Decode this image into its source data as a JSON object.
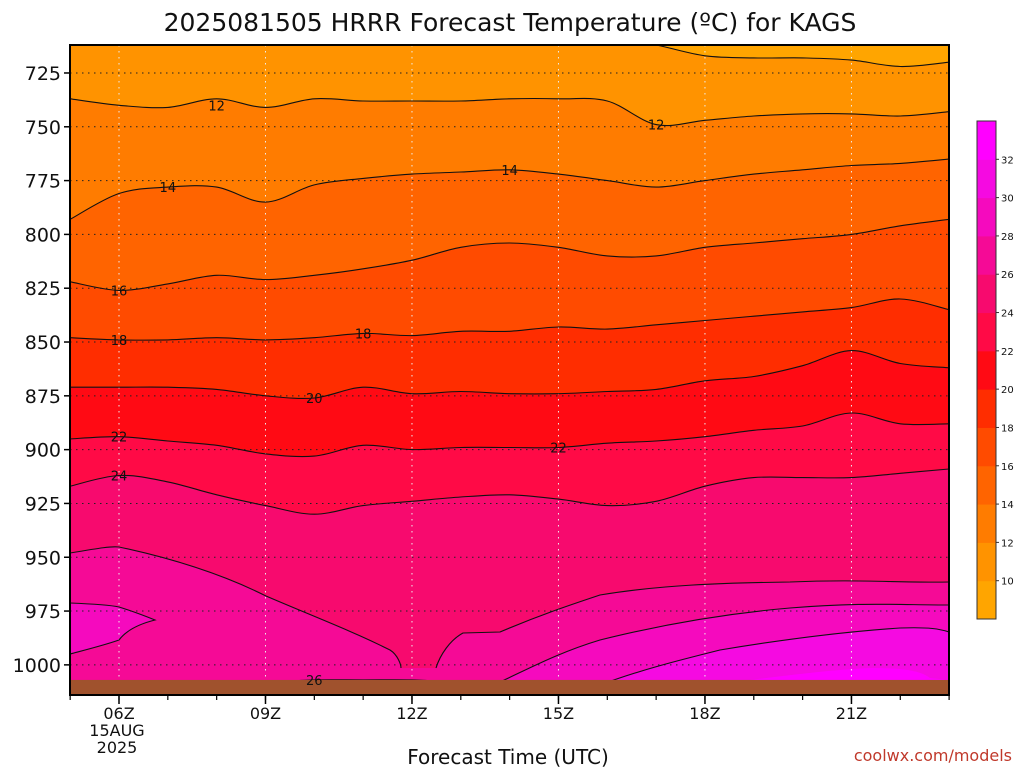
{
  "chart_data": {
    "type": "contour",
    "title": "2025081505 HRRR Forecast Temperature (ºC) for KAGS",
    "xlabel": "Forecast Time (UTC)",
    "credit": "coolwx.com/models",
    "x_tick_labels": [
      "06Z",
      "09Z",
      "12Z",
      "15Z",
      "18Z",
      "21Z"
    ],
    "x_first_tick_date": [
      "15AUG",
      "2025"
    ],
    "x_hours": [
      5,
      6,
      7,
      8,
      9,
      10,
      11,
      12,
      13,
      14,
      15,
      16,
      17,
      18,
      19,
      20,
      21,
      22,
      23
    ],
    "y_ticks": [
      725,
      750,
      775,
      800,
      825,
      850,
      875,
      900,
      925,
      950,
      975,
      1000
    ],
    "y_range": [
      1014,
      712
    ],
    "surface_pressure": 1007,
    "colorbar_ticks": [
      10,
      12,
      14,
      16,
      18,
      20,
      22,
      24,
      26,
      28,
      30,
      32
    ],
    "colorbar_colors": [
      "#FFA500",
      "#FF9300",
      "#FF7C00",
      "#FF6400",
      "#FF4B00",
      "#FF2D00",
      "#FF0A14",
      "#FF0A46",
      "#F70A6E",
      "#F50A96",
      "#F50ABE",
      "#F50AE1",
      "#FF00FF"
    ],
    "surface_color": "#A0522D",
    "isotherms": [
      {
        "value": 10,
        "pressure": [
          708,
          708,
          708,
          708,
          708,
          708,
          708,
          708,
          708,
          708,
          708,
          708,
          712,
          717,
          718,
          718,
          719,
          722,
          720
        ]
      },
      {
        "value": 12,
        "pressure": [
          737,
          740,
          741,
          737,
          741,
          737,
          738,
          738,
          738,
          737,
          737,
          738,
          749,
          747,
          745,
          744,
          744,
          745,
          743
        ]
      },
      {
        "value": 14,
        "pressure": [
          793,
          781,
          778,
          778,
          785,
          777,
          774,
          772,
          771,
          770,
          772,
          775,
          778,
          775,
          772,
          770,
          768,
          767,
          765
        ]
      },
      {
        "value": 16,
        "pressure": [
          822,
          826,
          823,
          819,
          821,
          819,
          816,
          812,
          806,
          804,
          806,
          810,
          810,
          806,
          804,
          802,
          800,
          796,
          793
        ]
      },
      {
        "value": 18,
        "pressure": [
          848,
          849,
          849,
          848,
          849,
          848,
          846,
          847,
          845,
          845,
          843,
          844,
          842,
          840,
          838,
          836,
          834,
          830,
          835
        ]
      },
      {
        "value": 20,
        "pressure": [
          871,
          871,
          871,
          872,
          875,
          876,
          871,
          874,
          873,
          874,
          874,
          873,
          872,
          868,
          866,
          861,
          854,
          860,
          862
        ]
      },
      {
        "value": 22,
        "pressure": [
          895,
          894,
          896,
          898,
          902,
          903,
          898,
          900,
          899,
          899,
          899,
          897,
          896,
          894,
          891,
          889,
          883,
          888,
          888
        ]
      },
      {
        "value": 24,
        "pressure": [
          917,
          912,
          915,
          921,
          926,
          930,
          926,
          924,
          922,
          921,
          923,
          926,
          924,
          917,
          913,
          913,
          913,
          911,
          909
        ]
      },
      {
        "value": 26,
        "pressure": [
          1008,
          1008,
          1008,
          1008,
          1008,
          1007,
          1007,
          1007,
          1008,
          1008,
          1008,
          1008,
          1008,
          1008,
          1008,
          1008,
          1008,
          1008,
          1008
        ]
      }
    ],
    "contour_labels": [
      {
        "text": "12",
        "x": 8.0,
        "p": 740
      },
      {
        "text": "12",
        "x": 17.0,
        "p": 749
      },
      {
        "text": "14",
        "x": 7.0,
        "p": 778
      },
      {
        "text": "14",
        "x": 14.0,
        "p": 770
      },
      {
        "text": "16",
        "x": 6.0,
        "p": 826
      },
      {
        "text": "18",
        "x": 6.0,
        "p": 849
      },
      {
        "text": "18",
        "x": 11.0,
        "p": 846
      },
      {
        "text": "20",
        "x": 10.0,
        "p": 876
      },
      {
        "text": "22",
        "x": 6.0,
        "p": 894
      },
      {
        "text": "22",
        "x": 15.0,
        "p": 899
      },
      {
        "text": "24",
        "x": 6.0,
        "p": 912
      },
      {
        "text": "26",
        "x": 10.0,
        "p": 1007
      }
    ]
  }
}
